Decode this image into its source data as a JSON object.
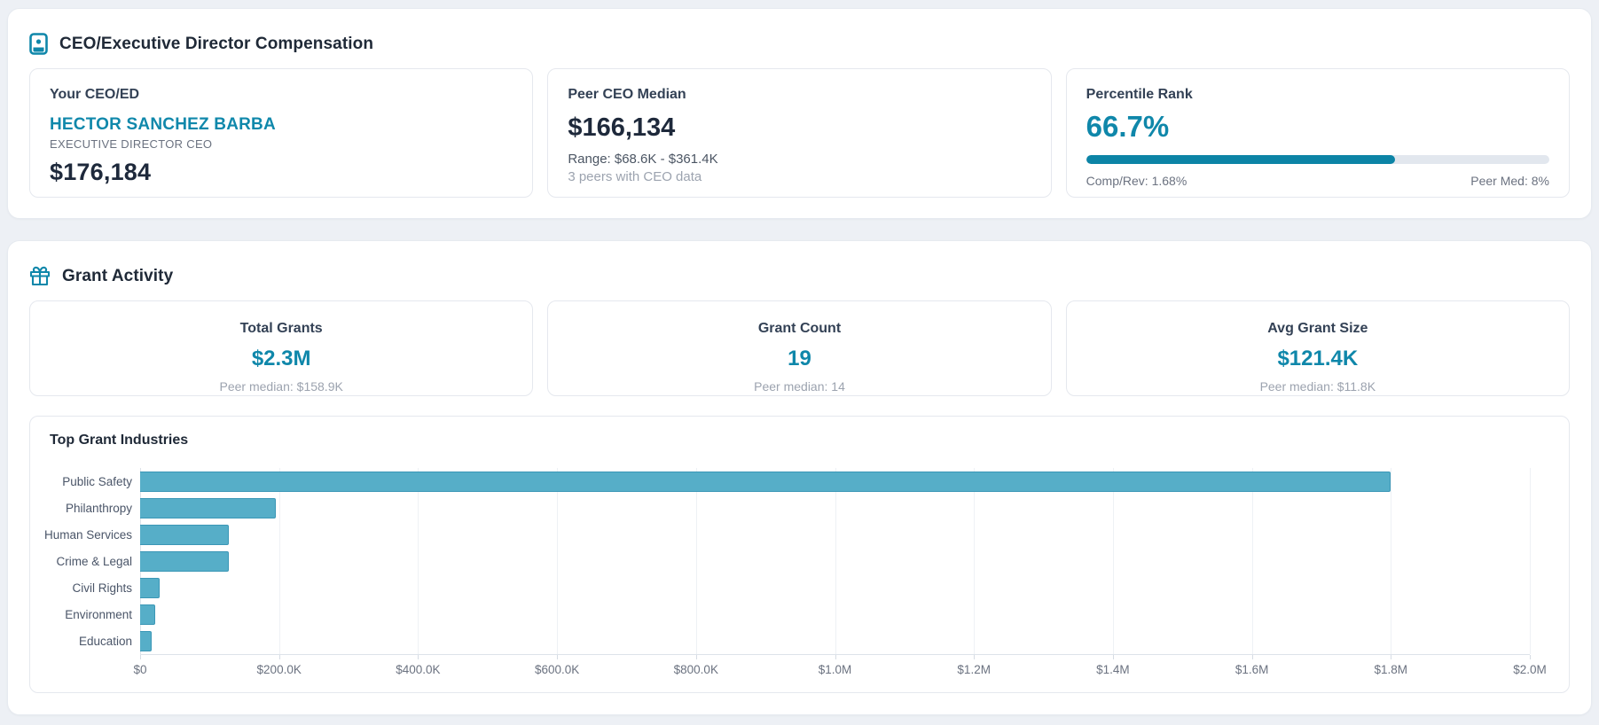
{
  "theme": {
    "accent_teal": "#0f87aa",
    "progress_fill": "#0c84a6",
    "bar_fill": "#56aec8",
    "bar_border": "#3b97b6"
  },
  "compensation": {
    "section_title": "CEO/Executive Director Compensation",
    "your_ceo": {
      "label": "Your CEO/ED",
      "name": "HECTOR SANCHEZ BARBA",
      "title": "EXECUTIVE DIRECTOR CEO",
      "amount": "$176,184"
    },
    "peer_median": {
      "label": "Peer CEO Median",
      "amount": "$166,134",
      "range": "Range: $68.6K - $361.4K",
      "peers": "3 peers with CEO data"
    },
    "percentile": {
      "label": "Percentile Rank",
      "value": "66.7%",
      "value_pct": 66.7,
      "comp_rev": "Comp/Rev: 1.68%",
      "peer_med": "Peer Med: 8%"
    }
  },
  "grant_activity": {
    "section_title": "Grant Activity",
    "cards": [
      {
        "label": "Total Grants",
        "value": "$2.3M",
        "sub": "Peer median: $158.9K"
      },
      {
        "label": "Grant Count",
        "value": "19",
        "sub": "Peer median: 14"
      },
      {
        "label": "Avg Grant Size",
        "value": "$121.4K",
        "sub": "Peer median: $11.8K"
      }
    ]
  },
  "chart_data": {
    "type": "bar",
    "orientation": "horizontal",
    "title": "Top Grant Industries",
    "categories": [
      "Public Safety",
      "Philanthropy",
      "Human Services",
      "Crime & Legal",
      "Civil Rights",
      "Environment",
      "Education"
    ],
    "values": [
      1800000,
      195000,
      128000,
      128000,
      28000,
      22000,
      17000
    ],
    "xlim": [
      0,
      2000000
    ],
    "x_ticks": [
      "$0",
      "$200.0K",
      "$400.0K",
      "$600.0K",
      "$800.0K",
      "$1.0M",
      "$1.2M",
      "$1.4M",
      "$1.6M",
      "$1.8M",
      "$2.0M"
    ],
    "grid": true,
    "legend": false,
    "bar_color": "#56aec8"
  }
}
